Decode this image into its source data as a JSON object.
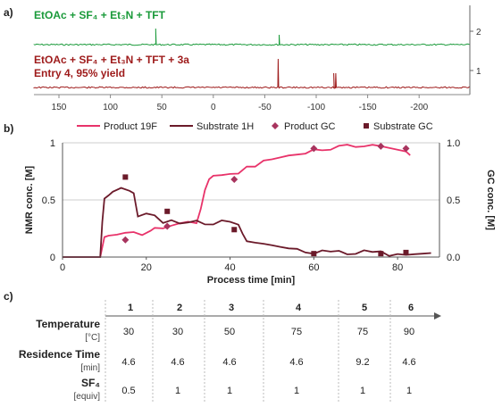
{
  "panels": {
    "a": "a)",
    "b": "b)",
    "c": "c)"
  },
  "colors": {
    "green": "#1a9a3a",
    "red": "#9e1b1b",
    "pink": "#e8336a",
    "maroon": "#6b1a2a",
    "grid": "#999999",
    "text": "#222222"
  },
  "nmr": {
    "spectrum1_label": "EtOAc + SF₄ + Et₃N + TFT",
    "spectrum2_label_line1": "EtOAc + SF₄ + Et₃N + TFT + 3a",
    "spectrum2_label_line2": "Entry 4, 95% yield",
    "right_ticks": [
      "2",
      "1"
    ],
    "x_ticks": [
      "150",
      "100",
      "50",
      "0",
      "-50",
      "-100",
      "-150",
      "-200"
    ],
    "spectrum1_peaks": [
      {
        "ppm": 56,
        "height": 0.9
      },
      {
        "ppm": -64,
        "height": 0.55
      }
    ],
    "spectrum2_peaks": [
      {
        "ppm": -63,
        "height": 1.0
      },
      {
        "ppm": -117,
        "height": 0.5
      },
      {
        "ppm": -119,
        "height": 0.5
      }
    ]
  },
  "chart_data": {
    "type": "line",
    "xlabel": "Process time [min]",
    "ylabel": "NMR conc. [M]",
    "y2label": "GC conc. [M]",
    "xlim": [
      0,
      90
    ],
    "ylim": [
      0,
      1
    ],
    "y2lim": [
      0,
      1
    ],
    "x_ticks": [
      "0",
      "20",
      "40",
      "60",
      "80"
    ],
    "y_ticks": [
      "0",
      "0.5",
      "1"
    ],
    "y2_ticks": [
      "0.0",
      "0.5",
      "1.0"
    ],
    "legend": [
      "Product 19F",
      "Substrate 1H",
      "Product GC",
      "Substrate GC"
    ],
    "legend_position": "top",
    "series": [
      {
        "name": "Product 19F",
        "type": "line",
        "x": [
          0,
          9,
          10,
          11,
          13,
          15,
          17,
          19,
          21,
          22,
          24,
          26,
          28,
          30,
          32,
          33,
          34,
          35,
          36,
          38,
          40,
          42,
          44,
          46,
          48,
          50,
          52,
          54,
          56,
          58,
          60,
          62,
          64,
          66,
          68,
          70,
          72,
          74,
          76,
          78,
          80,
          82,
          83
        ],
        "y": [
          0,
          0,
          0.18,
          0.2,
          0.19,
          0.2,
          0.21,
          0.2,
          0.22,
          0.25,
          0.26,
          0.27,
          0.3,
          0.32,
          0.31,
          0.42,
          0.58,
          0.68,
          0.71,
          0.72,
          0.72,
          0.74,
          0.78,
          0.8,
          0.83,
          0.85,
          0.87,
          0.89,
          0.9,
          0.91,
          0.95,
          0.93,
          0.95,
          0.96,
          0.97,
          0.96,
          0.98,
          0.97,
          0.98,
          0.96,
          0.95,
          0.92,
          0.9
        ]
      },
      {
        "name": "Substrate 1H",
        "type": "line",
        "x": [
          0,
          9,
          9.5,
          10,
          11,
          12,
          14,
          16,
          17,
          18,
          20,
          22,
          24,
          26,
          28,
          30,
          32,
          34,
          36,
          38,
          40,
          42,
          43,
          44,
          46,
          48,
          50,
          52,
          54,
          56,
          58,
          60,
          62,
          64,
          66,
          68,
          70,
          72,
          74,
          76,
          78,
          80,
          82,
          84,
          86,
          88
        ],
        "y": [
          0,
          0,
          0.3,
          0.5,
          0.55,
          0.58,
          0.6,
          0.59,
          0.55,
          0.37,
          0.38,
          0.35,
          0.3,
          0.31,
          0.3,
          0.3,
          0.31,
          0.29,
          0.3,
          0.31,
          0.3,
          0.29,
          0.2,
          0.15,
          0.14,
          0.11,
          0.09,
          0.08,
          0.07,
          0.06,
          0.05,
          0.04,
          0.06,
          0.04,
          0.05,
          0.03,
          0.04,
          0.05,
          0.03,
          0.04,
          0.02,
          0.04,
          0.02,
          0.03,
          0.04,
          0.03
        ]
      },
      {
        "name": "Product GC",
        "type": "scatter",
        "marker": "diamond",
        "x": [
          15,
          25,
          41,
          60,
          76,
          82
        ],
        "y": [
          0.15,
          0.27,
          0.68,
          0.95,
          0.97,
          0.95
        ]
      },
      {
        "name": "Substrate GC",
        "type": "scatter",
        "marker": "square",
        "x": [
          15,
          25,
          41,
          60,
          76,
          82
        ],
        "y": [
          0.7,
          0.4,
          0.24,
          0.03,
          0.03,
          0.04
        ]
      }
    ]
  },
  "table": {
    "headers": [
      "1",
      "2",
      "3",
      "4",
      "5",
      "6"
    ],
    "rows": [
      {
        "label": "Temperature",
        "unit": "[°C]",
        "values": [
          "30",
          "30",
          "50",
          "75",
          "75",
          "90"
        ]
      },
      {
        "label": "Residence Time",
        "unit": "[min]",
        "values": [
          "4.6",
          "4.6",
          "4.6",
          "4.6",
          "9.2",
          "4.6"
        ]
      },
      {
        "label": "SF₄",
        "unit": "[equiv]",
        "values": [
          "0.5",
          "1",
          "1",
          "1",
          "1",
          "1"
        ]
      }
    ]
  }
}
